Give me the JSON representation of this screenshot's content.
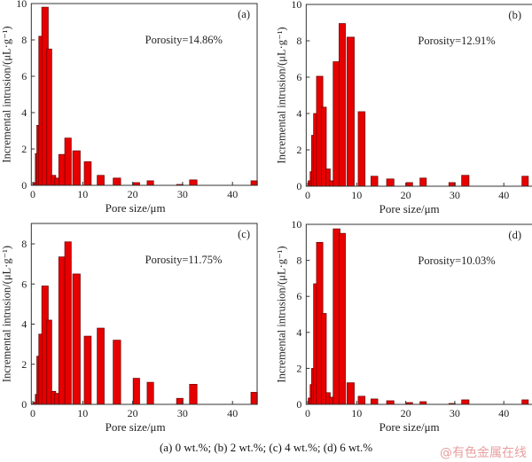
{
  "chart_data": {
    "type": "bar",
    "bins_um": [
      [
        0.1,
        0.5
      ],
      [
        0.5,
        1.8
      ],
      [
        0.8,
        2.1
      ],
      [
        1.2,
        2.5
      ],
      [
        1.8,
        3.1
      ],
      [
        2.8,
        3.8
      ],
      [
        3.7,
        4.6
      ],
      [
        4.4,
        5.5
      ],
      [
        5.2,
        6.6
      ],
      [
        6.4,
        7.7
      ],
      [
        8.0,
        9.5
      ],
      [
        10.3,
        11.7
      ],
      [
        12.9,
        14.3
      ],
      [
        16.1,
        17.6
      ],
      [
        20.1,
        21.4
      ],
      [
        22.9,
        24.2
      ],
      [
        28.8,
        30.1
      ],
      [
        31.4,
        32.9
      ],
      [
        43.7,
        45.0
      ]
    ],
    "xlabel": "Pore size/μm",
    "ylabel": "Incremental intrusion/(μL·g⁻¹)",
    "xlim": [
      0,
      45
    ],
    "xticks": [
      "0",
      "10",
      "20",
      "30",
      "40"
    ],
    "panels": [
      {
        "label": "(a)",
        "annotation": "Porosity=14.86%",
        "ylim": [
          0,
          10
        ],
        "yticks": [
          "0",
          "2",
          "4",
          "6",
          "8",
          "10"
        ],
        "values": [
          0.15,
          1.75,
          3.3,
          8.2,
          9.8,
          7.5,
          0.55,
          0.4,
          1.7,
          2.6,
          1.9,
          1.3,
          0.55,
          0.4,
          0.15,
          0.25,
          0.05,
          0.3,
          0.25
        ]
      },
      {
        "label": "(b)",
        "annotation": "Porosity=12.91%",
        "ylim": [
          0,
          10
        ],
        "yticks": [
          "0",
          "2",
          "4",
          "6",
          "8",
          "10"
        ],
        "values": [
          0.3,
          0.8,
          2.8,
          4.0,
          6.05,
          4.35,
          0.95,
          0.3,
          6.85,
          8.95,
          8.2,
          4.1,
          0.55,
          0.4,
          0.2,
          0.45,
          0.2,
          0.6,
          0.55
        ]
      },
      {
        "label": "(c)",
        "annotation": "Porosity=11.75%",
        "ylim": [
          0,
          9
        ],
        "yticks": [
          "0",
          "2",
          "4",
          "6",
          "8"
        ],
        "values": [
          0.1,
          0.5,
          2.4,
          3.5,
          5.9,
          4.2,
          0.65,
          0.55,
          7.35,
          8.1,
          6.5,
          3.4,
          3.8,
          3.2,
          1.3,
          1.1,
          0.3,
          1.0,
          0.6
        ]
      },
      {
        "label": "(d)",
        "annotation": "Porosity=10.03%",
        "ylim": [
          0,
          10
        ],
        "yticks": [
          "0",
          "2",
          "4",
          "6",
          "8",
          "10"
        ],
        "values": [
          0.35,
          1.1,
          2.0,
          6.7,
          9.0,
          5.05,
          0.65,
          0.4,
          9.75,
          9.5,
          1.2,
          0.45,
          0.3,
          0.2,
          0.1,
          0.15,
          0.05,
          0.25,
          0.25
        ]
      }
    ]
  },
  "caption": "(a) 0 wt.%; (b) 2 wt.%; (c) 4 wt.%; (d) 6 wt.%",
  "watermark": "@有色金属在线",
  "colors": {
    "bar": "#e60000",
    "bar_edge": "#6a0000"
  }
}
